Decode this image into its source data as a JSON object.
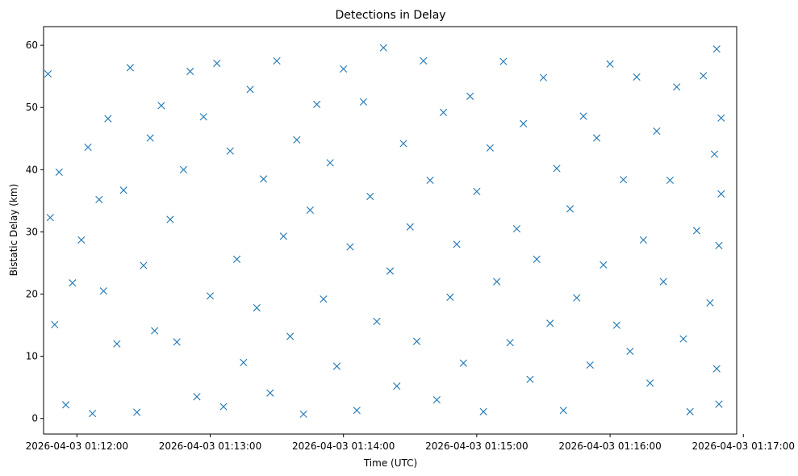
{
  "chart_data": {
    "type": "scatter",
    "title": "Detections in Delay",
    "xlabel": "Time (UTC)",
    "ylabel": "Bistatic Delay (km)",
    "marker": "x",
    "color": "#1f77b4",
    "grid": false,
    "legend": "none",
    "xlim": [
      "2026-04-03 01:11:45",
      "2026-04-03 01:16:57"
    ],
    "ylim": [
      -2.5,
      63
    ],
    "xticks": [
      "2026-04-03 01:12:00",
      "2026-04-03 01:13:00",
      "2026-04-03 01:14:00",
      "2026-04-03 01:15:00",
      "2026-04-03 01:16:00",
      "2026-04-03 01:17:00"
    ],
    "yticks": [
      0,
      10,
      20,
      30,
      40,
      50,
      60
    ],
    "x": [
      "2026-04-03 01:11:47",
      "2026-04-03 01:11:48",
      "2026-04-03 01:11:50",
      "2026-04-03 01:11:52",
      "2026-04-03 01:11:55",
      "2026-04-03 01:11:58",
      "2026-04-03 01:12:02",
      "2026-04-03 01:12:05",
      "2026-04-03 01:12:07",
      "2026-04-03 01:12:10",
      "2026-04-03 01:12:12",
      "2026-04-03 01:12:14",
      "2026-04-03 01:12:18",
      "2026-04-03 01:12:21",
      "2026-04-03 01:12:24",
      "2026-04-03 01:12:27",
      "2026-04-03 01:12:30",
      "2026-04-03 01:12:33",
      "2026-04-03 01:12:35",
      "2026-04-03 01:12:38",
      "2026-04-03 01:12:42",
      "2026-04-03 01:12:45",
      "2026-04-03 01:12:48",
      "2026-04-03 01:12:51",
      "2026-04-03 01:12:54",
      "2026-04-03 01:12:57",
      "2026-04-03 01:13:00",
      "2026-04-03 01:13:03",
      "2026-04-03 01:13:06",
      "2026-04-03 01:13:09",
      "2026-04-03 01:13:12",
      "2026-04-03 01:13:15",
      "2026-04-03 01:13:18",
      "2026-04-03 01:13:21",
      "2026-04-03 01:13:24",
      "2026-04-03 01:13:27",
      "2026-04-03 01:13:30",
      "2026-04-03 01:13:33",
      "2026-04-03 01:13:36",
      "2026-04-03 01:13:39",
      "2026-04-03 01:13:42",
      "2026-04-03 01:13:45",
      "2026-04-03 01:13:48",
      "2026-04-03 01:13:51",
      "2026-04-03 01:13:54",
      "2026-04-03 01:13:57",
      "2026-04-03 01:14:00",
      "2026-04-03 01:14:03",
      "2026-04-03 01:14:06",
      "2026-04-03 01:14:09",
      "2026-04-03 01:14:12",
      "2026-04-03 01:14:15",
      "2026-04-03 01:14:18",
      "2026-04-03 01:14:21",
      "2026-04-03 01:14:24",
      "2026-04-03 01:14:27",
      "2026-04-03 01:14:30",
      "2026-04-03 01:14:33",
      "2026-04-03 01:14:36",
      "2026-04-03 01:14:39",
      "2026-04-03 01:14:42",
      "2026-04-03 01:14:45",
      "2026-04-03 01:14:48",
      "2026-04-03 01:14:51",
      "2026-04-03 01:14:54",
      "2026-04-03 01:14:57",
      "2026-04-03 01:15:00",
      "2026-04-03 01:15:03",
      "2026-04-03 01:15:06",
      "2026-04-03 01:15:09",
      "2026-04-03 01:15:12",
      "2026-04-03 01:15:15",
      "2026-04-03 01:15:18",
      "2026-04-03 01:15:21",
      "2026-04-03 01:15:24",
      "2026-04-03 01:15:27",
      "2026-04-03 01:15:30",
      "2026-04-03 01:15:33",
      "2026-04-03 01:15:36",
      "2026-04-03 01:15:39",
      "2026-04-03 01:15:42",
      "2026-04-03 01:15:45",
      "2026-04-03 01:15:48",
      "2026-04-03 01:15:51",
      "2026-04-03 01:15:54",
      "2026-04-03 01:15:57",
      "2026-04-03 01:16:00",
      "2026-04-03 01:16:03",
      "2026-04-03 01:16:06",
      "2026-04-03 01:16:09",
      "2026-04-03 01:16:12",
      "2026-04-03 01:16:15",
      "2026-04-03 01:16:18",
      "2026-04-03 01:16:21",
      "2026-04-03 01:16:24",
      "2026-04-03 01:16:27",
      "2026-04-03 01:16:30",
      "2026-04-03 01:16:33",
      "2026-04-03 01:16:36",
      "2026-04-03 01:16:39",
      "2026-04-03 01:16:42",
      "2026-04-03 01:16:45",
      "2026-04-03 01:16:47",
      "2026-04-03 01:16:48",
      "2026-04-03 01:16:48",
      "2026-04-03 01:16:49",
      "2026-04-03 01:16:49",
      "2026-04-03 01:16:50",
      "2026-04-03 01:16:50"
    ],
    "y": [
      55.4,
      32.3,
      15.1,
      39.6,
      2.2,
      21.8,
      28.7,
      43.6,
      0.8,
      35.2,
      20.5,
      48.2,
      12.0,
      36.7,
      56.4,
      1.0,
      24.6,
      45.1,
      14.1,
      50.3,
      32.0,
      12.3,
      40.0,
      55.8,
      3.5,
      48.5,
      19.7,
      57.1,
      1.9,
      43.0,
      25.6,
      9.0,
      52.9,
      17.8,
      38.5,
      4.1,
      57.5,
      29.3,
      13.2,
      44.8,
      0.7,
      33.5,
      50.5,
      19.2,
      41.1,
      8.4,
      56.2,
      27.6,
      1.3,
      50.9,
      35.7,
      15.6,
      59.6,
      23.7,
      5.2,
      44.2,
      30.8,
      12.4,
      57.5,
      38.3,
      3.0,
      49.2,
      19.5,
      28.0,
      8.9,
      51.8,
      36.5,
      1.1,
      43.5,
      22.0,
      57.4,
      12.2,
      30.5,
      47.4,
      6.3,
      25.6,
      54.8,
      15.3,
      40.2,
      1.3,
      33.7,
      19.4,
      48.6,
      8.6,
      45.1,
      24.7,
      57.0,
      15.0,
      38.4,
      10.8,
      54.9,
      28.7,
      5.7,
      46.2,
      22.0,
      38.3,
      53.3,
      12.8,
      1.1,
      30.2,
      55.1,
      18.6,
      42.5,
      8.0,
      59.4,
      27.8,
      2.3,
      36.1,
      48.3
    ]
  }
}
